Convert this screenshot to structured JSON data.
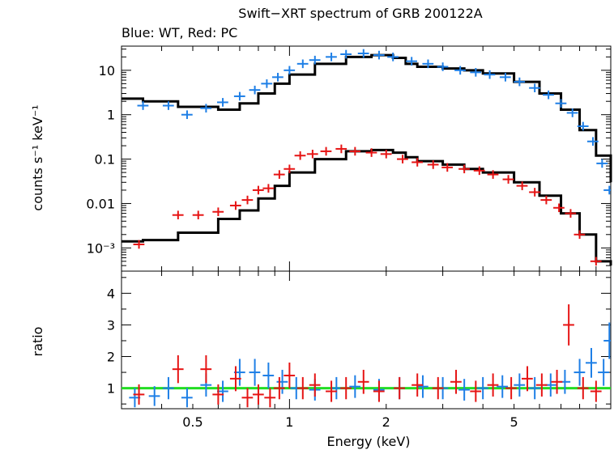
{
  "title": "Swift−XRT spectrum of GRB 200122A",
  "subtitle": "Blue: WT, Red: PC",
  "colors": {
    "wt": "#1e7fe6",
    "pc": "#e61414",
    "model": "#000000",
    "unity": "#22dd22",
    "frame": "#000000"
  },
  "chart_data": [
    {
      "type": "scatter",
      "panel": "spectrum",
      "xlabel": "Energy (keV)",
      "ylabel": "counts s⁻¹ keV⁻¹",
      "xscale": "log",
      "yscale": "log",
      "xlim": [
        0.3,
        10
      ],
      "ylim": [
        0.0003,
        35
      ],
      "ytick_labels": [
        "10",
        "1",
        "0.1",
        "0.01",
        "10⁻³"
      ],
      "ytick_values": [
        10,
        1,
        0.1,
        0.01,
        0.001
      ],
      "series": [
        {
          "color": "blue",
          "x": [
            0.35,
            0.42,
            0.48,
            0.55,
            0.62,
            0.7,
            0.78,
            0.85,
            0.92,
            1.0,
            1.1,
            1.2,
            1.35,
            1.5,
            1.7,
            1.9,
            2.1,
            2.4,
            2.7,
            3.0,
            3.4,
            3.8,
            4.2,
            4.7,
            5.2,
            5.8,
            6.4,
            7.0,
            7.6,
            8.2,
            8.8,
            9.4,
            9.9
          ],
          "y": [
            1.6,
            1.6,
            1.0,
            1.4,
            1.9,
            2.6,
            3.6,
            5.0,
            7.0,
            10,
            14,
            17,
            20,
            23,
            24,
            22,
            20,
            16,
            14,
            12,
            10,
            9,
            8,
            7,
            5.5,
            4.0,
            2.8,
            1.8,
            1.1,
            0.55,
            0.25,
            0.08,
            0.02
          ]
        },
        {
          "color": "red",
          "x": [
            0.34,
            0.45,
            0.52,
            0.6,
            0.68,
            0.74,
            0.8,
            0.86,
            0.93,
            1.0,
            1.08,
            1.18,
            1.3,
            1.45,
            1.6,
            1.8,
            2.0,
            2.25,
            2.5,
            2.8,
            3.1,
            3.5,
            3.9,
            4.3,
            4.8,
            5.3,
            5.8,
            6.3,
            6.9,
            7.5,
            8.0,
            9.0
          ],
          "y": [
            0.0012,
            0.0055,
            0.0055,
            0.0065,
            0.009,
            0.012,
            0.02,
            0.022,
            0.045,
            0.06,
            0.12,
            0.13,
            0.15,
            0.17,
            0.15,
            0.14,
            0.13,
            0.1,
            0.085,
            0.075,
            0.065,
            0.06,
            0.055,
            0.045,
            0.035,
            0.025,
            0.018,
            0.012,
            0.008,
            0.006,
            0.002,
            0.0005
          ]
        },
        {
          "color": "model-wt",
          "x": [
            0.3,
            0.35,
            0.45,
            0.6,
            0.7,
            0.8,
            0.9,
            1.0,
            1.2,
            1.5,
            1.8,
            2.1,
            2.3,
            2.5,
            3.0,
            3.5,
            4.0,
            5.0,
            6.0,
            7.0,
            8.0,
            9.0,
            10.0
          ],
          "y": [
            2.3,
            2.0,
            1.5,
            1.3,
            1.8,
            3.0,
            5.0,
            8.0,
            14,
            20,
            22,
            19,
            14,
            12,
            11,
            10,
            8.5,
            5.5,
            3.0,
            1.3,
            0.45,
            0.12,
            0.03
          ]
        },
        {
          "color": "model-pc",
          "x": [
            0.3,
            0.35,
            0.45,
            0.6,
            0.7,
            0.8,
            0.9,
            1.0,
            1.2,
            1.5,
            1.8,
            2.1,
            2.3,
            2.5,
            3.0,
            3.5,
            4.0,
            5.0,
            6.0,
            7.0,
            8.0,
            9.0,
            10.0
          ],
          "y": [
            0.0014,
            0.0015,
            0.0022,
            0.0045,
            0.007,
            0.013,
            0.025,
            0.05,
            0.1,
            0.15,
            0.16,
            0.14,
            0.11,
            0.09,
            0.075,
            0.06,
            0.05,
            0.03,
            0.015,
            0.006,
            0.002,
            0.0005,
            0.0004
          ]
        }
      ]
    },
    {
      "type": "scatter",
      "panel": "ratio",
      "xlabel": "Energy (keV)",
      "ylabel": "ratio",
      "xscale": "log",
      "xlim": [
        0.3,
        10
      ],
      "ylim": [
        0.35,
        4.7
      ],
      "xtick_labels": [
        "0.5",
        "1",
        "2",
        "5"
      ],
      "xtick_values": [
        0.5,
        1,
        2,
        5
      ],
      "ytick_labels": [
        "1",
        "2",
        "3",
        "4"
      ],
      "ytick_values": [
        1,
        2,
        3,
        4
      ],
      "reference_line": 1,
      "series": [
        {
          "color": "blue",
          "x": [
            0.33,
            0.38,
            0.42,
            0.48,
            0.55,
            0.62,
            0.7,
            0.78,
            0.86,
            0.95,
            1.05,
            1.2,
            1.4,
            1.6,
            1.9,
            2.2,
            2.6,
            3.0,
            3.5,
            4.0,
            4.6,
            5.2,
            5.8,
            6.5,
            7.2,
            8.0,
            8.7,
            9.5,
            9.9
          ],
          "y": [
            0.7,
            0.75,
            1.0,
            0.7,
            1.1,
            0.9,
            1.5,
            1.5,
            1.4,
            1.2,
            1.0,
            0.95,
            1.0,
            1.05,
            0.95,
            1.0,
            1.05,
            1.0,
            0.95,
            1.0,
            1.05,
            1.1,
            1.0,
            1.1,
            1.2,
            1.5,
            1.8,
            1.5,
            2.5
          ]
        },
        {
          "color": "red",
          "x": [
            0.34,
            0.45,
            0.55,
            0.6,
            0.68,
            0.74,
            0.8,
            0.87,
            0.93,
            1.0,
            1.1,
            1.2,
            1.35,
            1.5,
            1.7,
            1.9,
            2.2,
            2.5,
            2.9,
            3.3,
            3.8,
            4.3,
            4.9,
            5.5,
            6.1,
            6.8,
            7.4,
            8.2,
            9.0
          ],
          "y": [
            0.8,
            1.6,
            1.6,
            0.8,
            1.3,
            0.7,
            0.8,
            0.7,
            1.0,
            1.4,
            1.0,
            1.1,
            0.9,
            1.0,
            1.2,
            0.9,
            1.0,
            1.1,
            1.0,
            1.2,
            0.9,
            1.1,
            1.0,
            1.3,
            1.1,
            1.2,
            3.0,
            1.0,
            0.9
          ]
        }
      ]
    }
  ]
}
